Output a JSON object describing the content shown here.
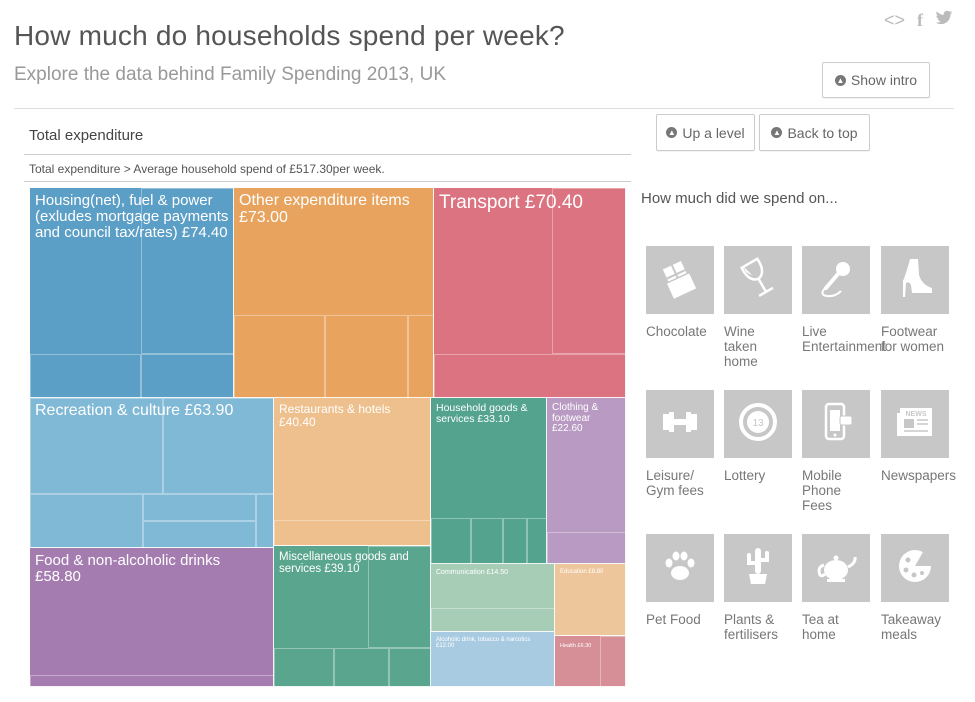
{
  "header": {
    "title": "How much do households spend per week?",
    "subtitle": "Explore the data behind Family Spending 2013, UK",
    "show_intro": "Show intro",
    "share": {
      "embed": "<>",
      "facebook": "f",
      "twitter": "❦"
    }
  },
  "controls": {
    "up_level": "Up a level",
    "back_top": "Back to top"
  },
  "treemap": {
    "title": "Total expenditure",
    "breadcrumb": "Total expenditure > Average household spend of £517.30per week.",
    "cells": [
      {
        "label": "Housing(net), fuel & power (exludes mortgage payments and council tax/rates) £74.40",
        "color": "#5b9ec6"
      },
      {
        "label": "Other expenditure items £73.00",
        "color": "#e8a45e"
      },
      {
        "label": "Transport £70.40",
        "color": "#dc7380"
      },
      {
        "label": "Recreation & culture £63.90",
        "color": "#80b9d6"
      },
      {
        "label": "Restaurants & hotels £40.40",
        "color": "#eec08d"
      },
      {
        "label": "Household goods & services £33.10",
        "color": "#54a38f"
      },
      {
        "label": "Clothing & footwear £22.60",
        "color": "#b99ac2"
      },
      {
        "label": "Food & non-alcoholic drinks £58.80",
        "color": "#a57cb0"
      },
      {
        "label": "Miscellaneous goods and services £39.10",
        "color": "#5aa58d"
      },
      {
        "label": "Communication £14.50",
        "color": "#a8cdb7"
      },
      {
        "label": "Education £8.80",
        "color": "#eec69c"
      },
      {
        "label": "Alcoholic drink, tobacco & narcotics £12.00",
        "color": "#a9cbe2"
      },
      {
        "label": "Health £6.30",
        "color": "#d68f97"
      }
    ]
  },
  "spend": {
    "heading": "How much did we spend on...",
    "items": [
      {
        "label": "Chocolate",
        "icon": "chocolate-icon"
      },
      {
        "label": "Wine\ntaken\nhome",
        "icon": "wine-glass-icon"
      },
      {
        "label": "Live\nEntertainment",
        "icon": "microphone-icon"
      },
      {
        "label": "Footwear\nfor women",
        "icon": "high-heel-icon"
      },
      {
        "label": "Leisure/\nGym fees",
        "icon": "dumbbell-icon"
      },
      {
        "label": "Lottery",
        "icon": "lottery-ball-icon"
      },
      {
        "label": "Mobile\nPhone\nFees",
        "icon": "mobile-phone-icon"
      },
      {
        "label": "Newspapers",
        "icon": "newspaper-icon"
      },
      {
        "label": "Pet Food",
        "icon": "paw-icon"
      },
      {
        "label": "Plants &\nfertilisers",
        "icon": "cactus-icon"
      },
      {
        "label": "Tea at\nhome",
        "icon": "teapot-icon"
      },
      {
        "label": "Takeaway\nmeals",
        "icon": "pizza-icon"
      }
    ],
    "lottery_number": "13",
    "newspaper_masthead": "NEWS"
  }
}
